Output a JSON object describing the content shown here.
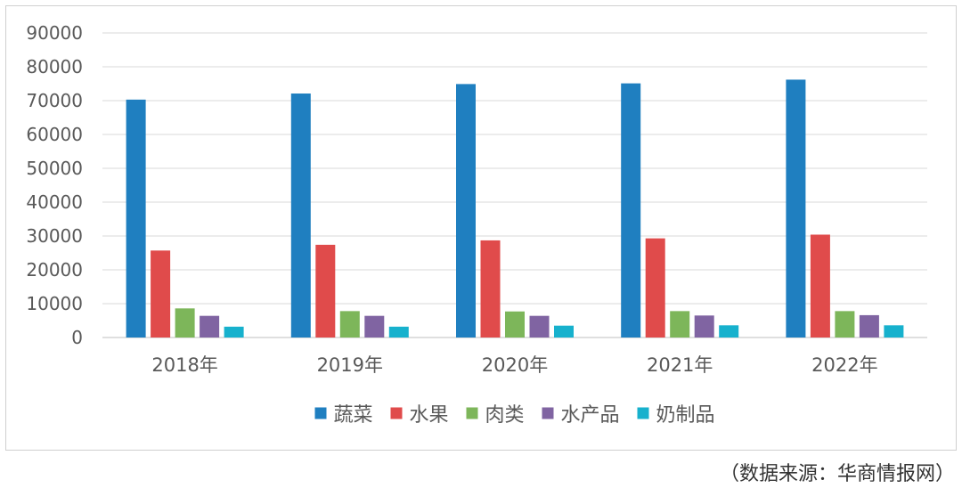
{
  "chart_data": {
    "type": "bar",
    "title": "",
    "xlabel": "",
    "ylabel": "",
    "categories": [
      "2018年",
      "2019年",
      "2020年",
      "2021年",
      "2022年"
    ],
    "ylim": [
      0,
      90000
    ],
    "yticks": [
      0,
      10000,
      20000,
      30000,
      40000,
      50000,
      60000,
      70000,
      80000,
      90000
    ],
    "grid": true,
    "legend_position": "bottom",
    "series": [
      {
        "name": "蔬菜",
        "color": "#1f7fc0",
        "values": [
          70300,
          72100,
          74900,
          75100,
          76200
        ]
      },
      {
        "name": "水果",
        "color": "#e04b4b",
        "values": [
          25700,
          27400,
          28700,
          29300,
          30400
        ]
      },
      {
        "name": "肉类",
        "color": "#7db65a",
        "values": [
          8600,
          7800,
          7700,
          7800,
          7800
        ]
      },
      {
        "name": "水产品",
        "color": "#8064a2",
        "values": [
          6400,
          6400,
          6400,
          6500,
          6600
        ]
      },
      {
        "name": "奶制品",
        "color": "#17b1cd",
        "values": [
          3200,
          3200,
          3500,
          3600,
          3600
        ]
      }
    ]
  },
  "source_note": "（数据来源：华商情报网）"
}
